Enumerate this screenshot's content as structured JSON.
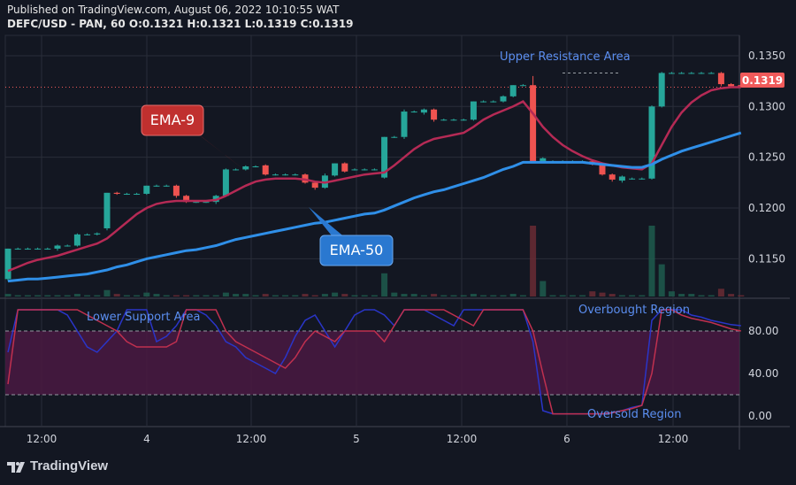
{
  "header": {
    "published": "Published on TradingView.com, August 06, 2022 10:10:55 WAT",
    "symbol_line": "DEFC/USD - PAN, 60  O:0.1321  H:0.1321  L:0.1319  C:0.1319"
  },
  "brand": {
    "name": "TradingView",
    "logo_icon": "tradingview-logo-icon"
  },
  "colors": {
    "background": "#131722",
    "grid": "#2a2e39",
    "axis_text": "#d1d4dc",
    "up": "#26a69a",
    "down": "#ef5350",
    "ema9": "#b52a55",
    "ema50": "#2f8fe8",
    "rsi_band": "#4a1942",
    "rsi_line": "#c0304f",
    "stoch_line": "#2a35c8",
    "annotation_blue": "#5b8ef0",
    "price_tag": "#f05a5a"
  },
  "annotations": {
    "ema9_callout": "EMA-9",
    "ema50_callout": "EMA-50",
    "upper_resistance": "Upper Resistance Area",
    "lower_support": "Lower Support Area",
    "overbought": "Overbought Region",
    "oversold": "Oversold Region"
  },
  "price_tag": "0.1319",
  "chart_data": [
    {
      "type": "candlestick",
      "title": "DEFC/USD - PAN, 60",
      "x_ticks": [
        "12:00",
        "4",
        "12:00",
        "5",
        "12:00",
        "6",
        "12:00"
      ],
      "y_ticks": [
        "0.1350",
        "0.1300",
        "0.1250",
        "0.1200",
        "0.1150"
      ],
      "ylim": [
        0.1112,
        0.137
      ],
      "current_price": 0.1319,
      "candles": [
        {
          "o": 0.113,
          "h": 0.116,
          "l": 0.1128,
          "c": 0.116
        },
        {
          "o": 0.116,
          "h": 0.1161,
          "l": 0.1159,
          "c": 0.116
        },
        {
          "o": 0.116,
          "h": 0.1161,
          "l": 0.1159,
          "c": 0.116
        },
        {
          "o": 0.116,
          "h": 0.1161,
          "l": 0.1159,
          "c": 0.116
        },
        {
          "o": 0.116,
          "h": 0.1161,
          "l": 0.1159,
          "c": 0.116
        },
        {
          "o": 0.116,
          "h": 0.1164,
          "l": 0.1158,
          "c": 0.1163
        },
        {
          "o": 0.1163,
          "h": 0.1164,
          "l": 0.1162,
          "c": 0.1163
        },
        {
          "o": 0.1163,
          "h": 0.1175,
          "l": 0.1162,
          "c": 0.1174
        },
        {
          "o": 0.1174,
          "h": 0.1175,
          "l": 0.1173,
          "c": 0.1174
        },
        {
          "o": 0.1174,
          "h": 0.1176,
          "l": 0.1173,
          "c": 0.1175
        },
        {
          "o": 0.118,
          "h": 0.1215,
          "l": 0.1178,
          "c": 0.1215
        },
        {
          "o": 0.1215,
          "h": 0.1216,
          "l": 0.1213,
          "c": 0.1214
        },
        {
          "o": 0.1214,
          "h": 0.1215,
          "l": 0.1213,
          "c": 0.1214
        },
        {
          "o": 0.1214,
          "h": 0.1215,
          "l": 0.1213,
          "c": 0.1214
        },
        {
          "o": 0.1214,
          "h": 0.1222,
          "l": 0.1213,
          "c": 0.1222
        },
        {
          "o": 0.1222,
          "h": 0.1223,
          "l": 0.1221,
          "c": 0.1222
        },
        {
          "o": 0.1222,
          "h": 0.1223,
          "l": 0.1221,
          "c": 0.1222
        },
        {
          "o": 0.1222,
          "h": 0.1223,
          "l": 0.121,
          "c": 0.1212
        },
        {
          "o": 0.1212,
          "h": 0.1213,
          "l": 0.1205,
          "c": 0.1206
        },
        {
          "o": 0.1206,
          "h": 0.1207,
          "l": 0.1205,
          "c": 0.1206
        },
        {
          "o": 0.1206,
          "h": 0.1207,
          "l": 0.1205,
          "c": 0.1206
        },
        {
          "o": 0.1206,
          "h": 0.1213,
          "l": 0.1204,
          "c": 0.1212
        },
        {
          "o": 0.1212,
          "h": 0.1239,
          "l": 0.1211,
          "c": 0.1238
        },
        {
          "o": 0.1238,
          "h": 0.1239,
          "l": 0.1237,
          "c": 0.1238
        },
        {
          "o": 0.1238,
          "h": 0.1242,
          "l": 0.1237,
          "c": 0.1241
        },
        {
          "o": 0.1241,
          "h": 0.1242,
          "l": 0.124,
          "c": 0.1241
        },
        {
          "o": 0.1242,
          "h": 0.1243,
          "l": 0.1232,
          "c": 0.1233
        },
        {
          "o": 0.1233,
          "h": 0.1234,
          "l": 0.1232,
          "c": 0.1233
        },
        {
          "o": 0.1233,
          "h": 0.1234,
          "l": 0.1232,
          "c": 0.1233
        },
        {
          "o": 0.1233,
          "h": 0.1234,
          "l": 0.1232,
          "c": 0.1233
        },
        {
          "o": 0.1233,
          "h": 0.1234,
          "l": 0.1224,
          "c": 0.1225
        },
        {
          "o": 0.1225,
          "h": 0.1226,
          "l": 0.1218,
          "c": 0.122
        },
        {
          "o": 0.122,
          "h": 0.1234,
          "l": 0.1219,
          "c": 0.1232
        },
        {
          "o": 0.1232,
          "h": 0.1244,
          "l": 0.1231,
          "c": 0.1244
        },
        {
          "o": 0.1244,
          "h": 0.1245,
          "l": 0.1235,
          "c": 0.1236
        },
        {
          "o": 0.1238,
          "h": 0.1239,
          "l": 0.1237,
          "c": 0.1238
        },
        {
          "o": 0.1238,
          "h": 0.1239,
          "l": 0.1237,
          "c": 0.1238
        },
        {
          "o": 0.1238,
          "h": 0.1239,
          "l": 0.1237,
          "c": 0.1238
        },
        {
          "o": 0.123,
          "h": 0.127,
          "l": 0.1229,
          "c": 0.127
        },
        {
          "o": 0.127,
          "h": 0.1271,
          "l": 0.1269,
          "c": 0.127
        },
        {
          "o": 0.127,
          "h": 0.1297,
          "l": 0.1268,
          "c": 0.1295
        },
        {
          "o": 0.1295,
          "h": 0.1296,
          "l": 0.1294,
          "c": 0.1295
        },
        {
          "o": 0.1294,
          "h": 0.1298,
          "l": 0.1292,
          "c": 0.1297
        },
        {
          "o": 0.1297,
          "h": 0.1298,
          "l": 0.1285,
          "c": 0.1287
        },
        {
          "o": 0.1287,
          "h": 0.1288,
          "l": 0.1286,
          "c": 0.1287
        },
        {
          "o": 0.1287,
          "h": 0.1288,
          "l": 0.1286,
          "c": 0.1287
        },
        {
          "o": 0.1287,
          "h": 0.1288,
          "l": 0.1286,
          "c": 0.1287
        },
        {
          "o": 0.1287,
          "h": 0.1305,
          "l": 0.1286,
          "c": 0.1305
        },
        {
          "o": 0.1305,
          "h": 0.1306,
          "l": 0.1304,
          "c": 0.1305
        },
        {
          "o": 0.1305,
          "h": 0.1306,
          "l": 0.1304,
          "c": 0.1305
        },
        {
          "o": 0.1305,
          "h": 0.1311,
          "l": 0.1304,
          "c": 0.131
        },
        {
          "o": 0.131,
          "h": 0.1321,
          "l": 0.1309,
          "c": 0.1321
        },
        {
          "o": 0.1321,
          "h": 0.1322,
          "l": 0.132,
          "c": 0.1321
        },
        {
          "o": 0.1321,
          "h": 0.133,
          "l": 0.1245,
          "c": 0.1246
        },
        {
          "o": 0.1246,
          "h": 0.125,
          "l": 0.1244,
          "c": 0.1249
        },
        {
          "o": 0.1246,
          "h": 0.1247,
          "l": 0.1245,
          "c": 0.1246
        },
        {
          "o": 0.1246,
          "h": 0.1247,
          "l": 0.1245,
          "c": 0.1246
        },
        {
          "o": 0.1246,
          "h": 0.1247,
          "l": 0.1245,
          "c": 0.1246
        },
        {
          "o": 0.1246,
          "h": 0.1247,
          "l": 0.1245,
          "c": 0.1246
        },
        {
          "o": 0.1246,
          "h": 0.1247,
          "l": 0.1242,
          "c": 0.1243
        },
        {
          "o": 0.1243,
          "h": 0.1244,
          "l": 0.1232,
          "c": 0.1233
        },
        {
          "o": 0.1233,
          "h": 0.1234,
          "l": 0.1226,
          "c": 0.1228
        },
        {
          "o": 0.1227,
          "h": 0.1232,
          "l": 0.1225,
          "c": 0.1231
        },
        {
          "o": 0.1229,
          "h": 0.123,
          "l": 0.1228,
          "c": 0.1229
        },
        {
          "o": 0.1229,
          "h": 0.123,
          "l": 0.1228,
          "c": 0.1229
        },
        {
          "o": 0.1229,
          "h": 0.1301,
          "l": 0.1228,
          "c": 0.13
        },
        {
          "o": 0.13,
          "h": 0.1334,
          "l": 0.1299,
          "c": 0.1333
        },
        {
          "o": 0.1333,
          "h": 0.1334,
          "l": 0.1332,
          "c": 0.1333
        },
        {
          "o": 0.1333,
          "h": 0.1334,
          "l": 0.1332,
          "c": 0.1333
        },
        {
          "o": 0.1333,
          "h": 0.1334,
          "l": 0.1332,
          "c": 0.1333
        },
        {
          "o": 0.1333,
          "h": 0.1334,
          "l": 0.1332,
          "c": 0.1333
        },
        {
          "o": 0.1333,
          "h": 0.1334,
          "l": 0.1332,
          "c": 0.1333
        },
        {
          "o": 0.1333,
          "h": 0.1334,
          "l": 0.132,
          "c": 0.1322
        },
        {
          "o": 0.1322,
          "h": 0.1323,
          "l": 0.132,
          "c": 0.132
        },
        {
          "o": 0.1321,
          "h": 0.1321,
          "l": 0.1319,
          "c": 0.1319
        }
      ],
      "ema9": [
        0.1138,
        0.1142,
        0.1146,
        0.1149,
        0.1151,
        0.1153,
        0.1156,
        0.1159,
        0.1162,
        0.1165,
        0.117,
        0.1178,
        0.1186,
        0.1194,
        0.12,
        0.1204,
        0.1206,
        0.1207,
        0.1207,
        0.1207,
        0.1207,
        0.1208,
        0.1212,
        0.1217,
        0.1222,
        0.1226,
        0.1228,
        0.1229,
        0.1229,
        0.1229,
        0.1228,
        0.1226,
        0.1225,
        0.1227,
        0.1229,
        0.1231,
        0.1233,
        0.1234,
        0.1235,
        0.1242,
        0.125,
        0.1258,
        0.1264,
        0.1268,
        0.127,
        0.1272,
        0.1274,
        0.128,
        0.1287,
        0.1292,
        0.1296,
        0.13,
        0.1305,
        0.1293,
        0.128,
        0.127,
        0.1262,
        0.1256,
        0.1251,
        0.1247,
        0.1244,
        0.1242,
        0.124,
        0.1239,
        0.1238,
        0.1244,
        0.1262,
        0.128,
        0.1294,
        0.1304,
        0.1311,
        0.1316,
        0.1318,
        0.1319,
        0.1319
      ],
      "ema50": [
        0.1128,
        0.1129,
        0.113,
        0.113,
        0.1131,
        0.1132,
        0.1133,
        0.1134,
        0.1135,
        0.1137,
        0.1139,
        0.1142,
        0.1144,
        0.1147,
        0.115,
        0.1152,
        0.1154,
        0.1156,
        0.1158,
        0.1159,
        0.1161,
        0.1163,
        0.1166,
        0.1169,
        0.1171,
        0.1173,
        0.1175,
        0.1177,
        0.1179,
        0.1181,
        0.1183,
        0.1185,
        0.1186,
        0.1188,
        0.119,
        0.1192,
        0.1194,
        0.1195,
        0.1198,
        0.1202,
        0.1206,
        0.121,
        0.1213,
        0.1216,
        0.1218,
        0.1221,
        0.1224,
        0.1227,
        0.123,
        0.1234,
        0.1238,
        0.1241,
        0.1245,
        0.1245,
        0.1245,
        0.1245,
        0.1245,
        0.1245,
        0.1245,
        0.1244,
        0.1243,
        0.1242,
        0.1241,
        0.124,
        0.124,
        0.1243,
        0.1248,
        0.1252,
        0.1256,
        0.1259,
        0.1262,
        0.1265,
        0.1268,
        0.1271,
        0.1274
      ],
      "volume": [
        2,
        1,
        1,
        1,
        1,
        1,
        1,
        2,
        1,
        1,
        5,
        2,
        1,
        1,
        3,
        2,
        1,
        1,
        1,
        1,
        1,
        1,
        3,
        2,
        2,
        1,
        2,
        1,
        1,
        1,
        2,
        1,
        2,
        3,
        2,
        1,
        1,
        1,
        18,
        3,
        2,
        2,
        1,
        2,
        1,
        1,
        1,
        2,
        1,
        1,
        1,
        2,
        1,
        55,
        12,
        1,
        1,
        1,
        1,
        4,
        3,
        2,
        1,
        1,
        1,
        55,
        25,
        4,
        2,
        2,
        1,
        1,
        6,
        2,
        1
      ]
    },
    {
      "type": "line",
      "title": "",
      "y_ticks": [
        "80.00",
        "40.00",
        "0.00"
      ],
      "ylim": [
        -10,
        110
      ],
      "levels": [
        80,
        20
      ],
      "series": [
        {
          "values": [
            30,
            100,
            100,
            100,
            100,
            100,
            100,
            100,
            95,
            90,
            85,
            80,
            70,
            65,
            65,
            65,
            65,
            70,
            100,
            100,
            100,
            100,
            80,
            70,
            65,
            60,
            55,
            50,
            45,
            55,
            70,
            80,
            75,
            70,
            80,
            80,
            80,
            80,
            70,
            85,
            100,
            100,
            100,
            100,
            100,
            95,
            90,
            85,
            100,
            100,
            100,
            100,
            100,
            80,
            40,
            2,
            2,
            2,
            2,
            2,
            2,
            3,
            5,
            7,
            10,
            40,
            100,
            100,
            95,
            92,
            90,
            88,
            85,
            82,
            80
          ]
        },
        {
          "values": [
            60,
            100,
            100,
            100,
            100,
            100,
            95,
            80,
            65,
            60,
            70,
            80,
            100,
            100,
            100,
            70,
            75,
            85,
            100,
            100,
            95,
            85,
            70,
            65,
            55,
            50,
            45,
            40,
            55,
            75,
            90,
            95,
            80,
            65,
            80,
            95,
            100,
            100,
            95,
            85,
            100,
            100,
            100,
            95,
            90,
            85,
            100,
            100,
            100,
            100,
            100,
            100,
            100,
            70,
            5,
            2,
            2,
            2,
            2,
            2,
            2,
            3,
            5,
            8,
            10,
            90,
            100,
            100,
            100,
            95,
            93,
            90,
            88,
            86,
            85
          ]
        }
      ]
    }
  ]
}
